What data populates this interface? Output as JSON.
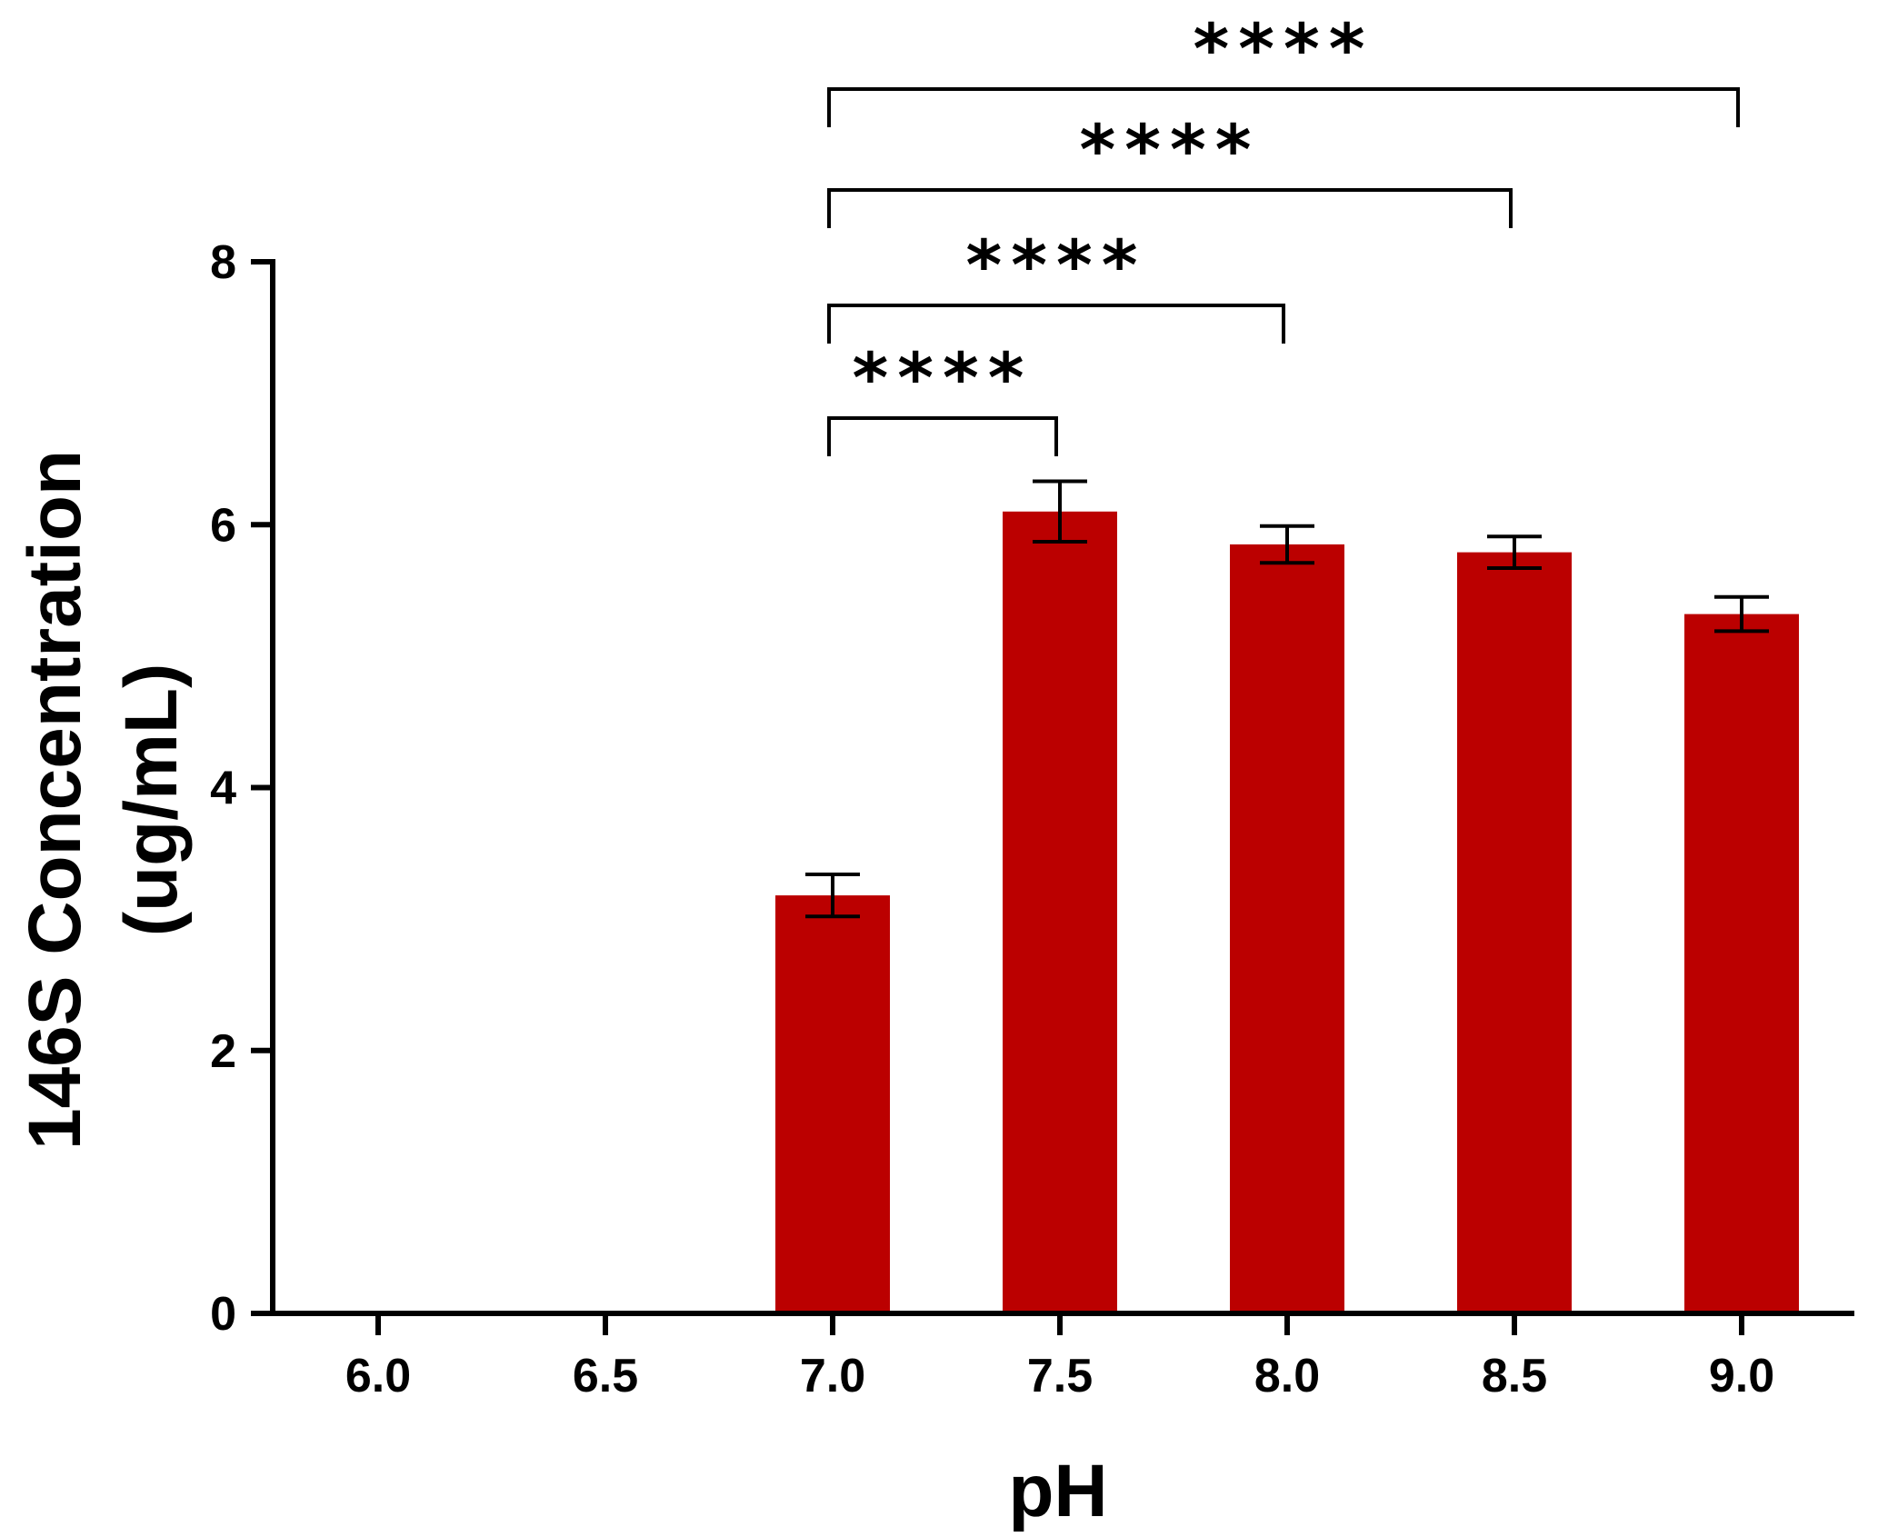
{
  "chart_data": {
    "type": "bar",
    "title": "",
    "xlabel": "pH",
    "ylabel_line1": "146S Concentration",
    "ylabel_line2": "(ug/mL)",
    "categories": [
      "6.0",
      "6.5",
      "7.0",
      "7.5",
      "8.0",
      "8.5",
      "9.0"
    ],
    "values": [
      0,
      0,
      3.18,
      6.1,
      5.85,
      5.79,
      5.32
    ],
    "errors": [
      0,
      0,
      0.16,
      0.23,
      0.14,
      0.12,
      0.13
    ],
    "ylim": [
      0,
      8
    ],
    "yticks": [
      0,
      2,
      4,
      6,
      8
    ],
    "bar_color": "#bb0000",
    "grid": false,
    "legend": "none",
    "significance": [
      {
        "from": "7.0",
        "to": "7.5",
        "label": "****"
      },
      {
        "from": "7.0",
        "to": "8.0",
        "label": "****"
      },
      {
        "from": "7.0",
        "to": "8.5",
        "label": "****"
      },
      {
        "from": "7.0",
        "to": "9.0",
        "label": "****"
      }
    ]
  }
}
